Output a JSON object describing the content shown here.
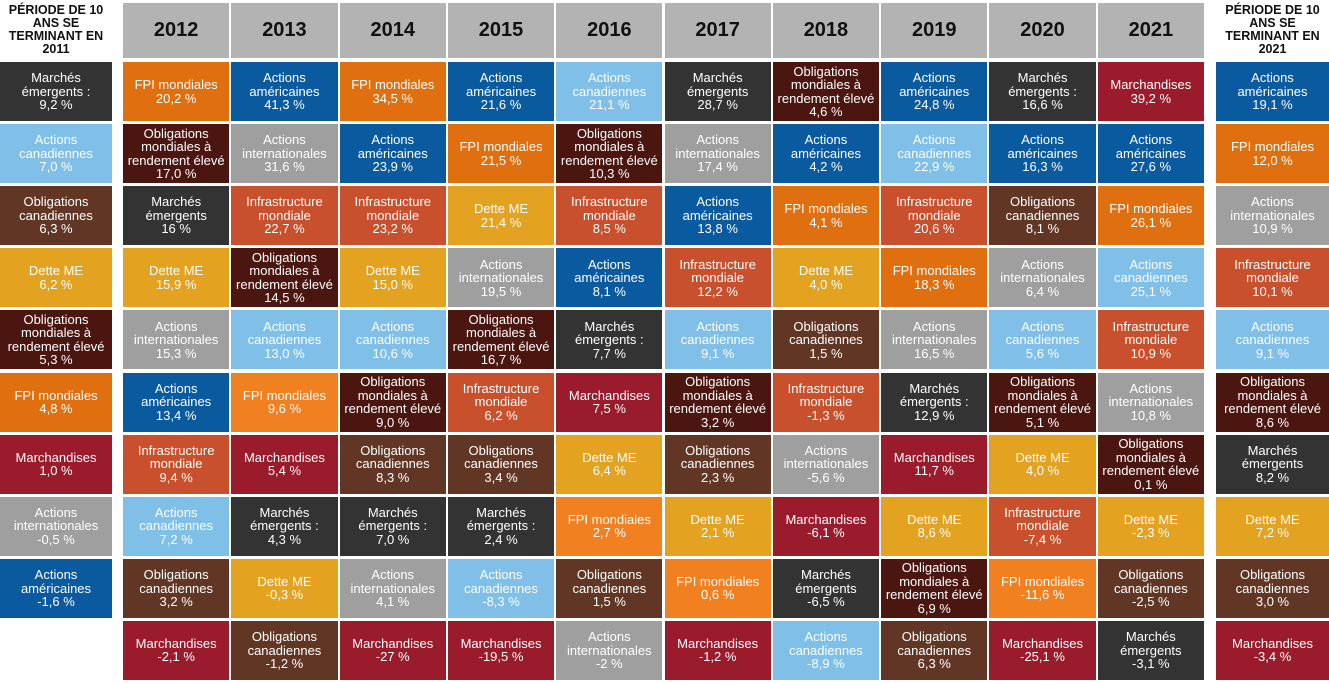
{
  "columns": [
    {
      "header": "PÉRIODE DE 10 ANS SE TERMINANT EN 2011",
      "cells": [
        {
          "asset": "Marchés émergents :",
          "value": "9,2 %",
          "color": "#333333"
        },
        {
          "asset": "Actions canadiennes",
          "value": "7,0 %",
          "color": "#7fbfe8"
        },
        {
          "asset": "Obligations canadiennes",
          "value": "6,3 %",
          "color": "#613624"
        },
        {
          "asset": "Dette ME",
          "value": "6,2 %",
          "color": "#e3a21f"
        },
        {
          "asset": "Obligations mondiales à rendement élevé",
          "value": "5,3 %",
          "color": "#4b1610"
        },
        {
          "asset": "FPI mondiales",
          "value": "4,8 %",
          "color": "#e0700f"
        },
        {
          "asset": "Marchandises",
          "value": "1,0 %",
          "color": "#9a1b2c"
        },
        {
          "asset": "Actions internationales",
          "value": "-0,5 %",
          "color": "#9f9f9f"
        },
        {
          "asset": "Actions américaines",
          "value": "-1,6 %",
          "color": "#0a5aa0"
        }
      ]
    },
    {
      "header": "2012",
      "cells": [
        {
          "asset": "FPI mondiales",
          "value": "20,2 %",
          "color": "#e0700f"
        },
        {
          "asset": "Obligations mondiales à rendement élevé",
          "value": "17,0 %",
          "color": "#4b1610"
        },
        {
          "asset": "Marchés émergents",
          "value": "16 %",
          "color": "#333333"
        },
        {
          "asset": "Dette ME",
          "value": "15,9 %",
          "color": "#e3a21f"
        },
        {
          "asset": "Actions internationales",
          "value": "15,3 %",
          "color": "#9f9f9f"
        },
        {
          "asset": "Actions américaines",
          "value": "13,4 %",
          "color": "#0a5aa0"
        },
        {
          "asset": "Infrastructure mondiale",
          "value": "9,4 %",
          "color": "#c8502c"
        },
        {
          "asset": "Actions canadiennes",
          "value": "7,2 %",
          "color": "#7fbfe8"
        },
        {
          "asset": "Obligations canadiennes",
          "value": "3,2 %",
          "color": "#613624"
        },
        {
          "asset": "Marchandises",
          "value": "-2,1 %",
          "color": "#9a1b2c"
        }
      ]
    },
    {
      "header": "2013",
      "cells": [
        {
          "asset": "Actions américaines",
          "value": "41,3 %",
          "color": "#0a5aa0"
        },
        {
          "asset": "Actions internationales",
          "value": "31,6 %",
          "color": "#9f9f9f"
        },
        {
          "asset": "Infrastructure mondiale",
          "value": "22,7 %",
          "color": "#c8502c"
        },
        {
          "asset": "Obligations mondiales à rendement élevé",
          "value": "14,5 %",
          "color": "#4b1610"
        },
        {
          "asset": "Actions canadiennes",
          "value": "13,0 %",
          "color": "#7fbfe8"
        },
        {
          "asset": "FPI mondiales",
          "value": "9,6 %",
          "color": "#f08020"
        },
        {
          "asset": "Marchandises",
          "value": "5,4 %",
          "color": "#9a1b2c"
        },
        {
          "asset": "Marchés émergents :",
          "value": "4,3 %",
          "color": "#333333"
        },
        {
          "asset": "Dette ME",
          "value": "-0,3 %",
          "color": "#e3a21f"
        },
        {
          "asset": "Obligations canadiennes",
          "value": "-1,2 %",
          "color": "#613624"
        }
      ]
    },
    {
      "header": "2014",
      "cells": [
        {
          "asset": "FPI mondiales",
          "value": "34,5 %",
          "color": "#e0700f"
        },
        {
          "asset": "Actions américaines",
          "value": "23,9 %",
          "color": "#0a5aa0"
        },
        {
          "asset": "Infrastructure mondiale",
          "value": "23,2 %",
          "color": "#c8502c"
        },
        {
          "asset": "Dette ME",
          "value": "15,0 %",
          "color": "#e3a21f"
        },
        {
          "asset": "Actions canadiennes",
          "value": "10,6 %",
          "color": "#7fbfe8"
        },
        {
          "asset": "Obligations mondiales à rendement élevé",
          "value": "9,0 %",
          "color": "#4b1610"
        },
        {
          "asset": "Obligations canadiennes",
          "value": "8,3 %",
          "color": "#613624"
        },
        {
          "asset": "Marchés émergents :",
          "value": "7,0 %",
          "color": "#333333"
        },
        {
          "asset": "Actions internationales",
          "value": "4,1 %",
          "color": "#9f9f9f"
        },
        {
          "asset": "Marchandises",
          "value": "-27 %",
          "color": "#9a1b2c"
        }
      ]
    },
    {
      "header": "2015",
      "cells": [
        {
          "asset": "Actions américaines",
          "value": "21,6 %",
          "color": "#0a5aa0"
        },
        {
          "asset": "FPI mondiales",
          "value": "21,5 %",
          "color": "#e0700f"
        },
        {
          "asset": "Dette ME",
          "value": "21,4 %",
          "color": "#e3a21f"
        },
        {
          "asset": "Actions internationales",
          "value": "19,5 %",
          "color": "#9f9f9f"
        },
        {
          "asset": "Obligations mondiales à rendement élevé",
          "value": "16,7 %",
          "color": "#4b1610"
        },
        {
          "asset": "Infrastructure mondiale",
          "value": "6,2 %",
          "color": "#c8502c"
        },
        {
          "asset": "Obligations canadiennes",
          "value": "3,4 %",
          "color": "#613624"
        },
        {
          "asset": "Marchés émergents :",
          "value": "2,4 %",
          "color": "#333333"
        },
        {
          "asset": "Actions canadiennes",
          "value": "-8,3 %",
          "color": "#7fbfe8"
        },
        {
          "asset": "Marchandises",
          "value": "-19,5 %",
          "color": "#9a1b2c"
        }
      ]
    },
    {
      "header": "2016",
      "cells": [
        {
          "asset": "Actions canadiennes",
          "value": "21,1 %",
          "color": "#7fbfe8"
        },
        {
          "asset": "Obligations mondiales à rendement élevé",
          "value": "10,3 %",
          "color": "#4b1610"
        },
        {
          "asset": "Infrastructure mondiale",
          "value": "8,5 %",
          "color": "#c8502c"
        },
        {
          "asset": "Actions américaines",
          "value": "8,1 %",
          "color": "#0a5aa0"
        },
        {
          "asset": "Marchés émergents :",
          "value": "7,7 %",
          "color": "#333333"
        },
        {
          "asset": "Marchandises",
          "value": "7,5 %",
          "color": "#9a1b2c"
        },
        {
          "asset": "Dette ME",
          "value": "6,4 %",
          "color": "#e3a21f"
        },
        {
          "asset": "FPI mondiales",
          "value": "2,7 %",
          "color": "#f08020"
        },
        {
          "asset": "Obligations canadiennes",
          "value": "1,5 %",
          "color": "#613624"
        },
        {
          "asset": "Actions internationales",
          "value": "-2 %",
          "color": "#9f9f9f"
        }
      ]
    },
    {
      "header": "2017",
      "cells": [
        {
          "asset": "Marchés émergents",
          "value": "28,7 %",
          "color": "#333333"
        },
        {
          "asset": "Actions internationales",
          "value": "17,4 %",
          "color": "#9f9f9f"
        },
        {
          "asset": "Actions américaines",
          "value": "13,8 %",
          "color": "#0a5aa0"
        },
        {
          "asset": "Infrastructure mondiale",
          "value": "12,2 %",
          "color": "#c8502c"
        },
        {
          "asset": "Actions canadiennes",
          "value": "9,1 %",
          "color": "#7fbfe8"
        },
        {
          "asset": "Obligations mondiales à rendement élevé",
          "value": "3,2 %",
          "color": "#4b1610"
        },
        {
          "asset": "Obligations canadiennes",
          "value": "2,3 %",
          "color": "#613624"
        },
        {
          "asset": "Dette ME",
          "value": "2,1 %",
          "color": "#e3a21f"
        },
        {
          "asset": "FPI mondiales",
          "value": "0,6 %",
          "color": "#f08020"
        },
        {
          "asset": "Marchandises",
          "value": "-1,2 %",
          "color": "#9a1b2c"
        }
      ]
    },
    {
      "header": "2018",
      "cells": [
        {
          "asset": "Obligations mondiales à rendement élevé",
          "value": "4,6 %",
          "color": "#4b1610"
        },
        {
          "asset": "Actions américaines",
          "value": "4,2 %",
          "color": "#0a5aa0"
        },
        {
          "asset": "FPI mondiales",
          "value": "4,1 %",
          "color": "#e0700f"
        },
        {
          "asset": "Dette ME",
          "value": "4,0 %",
          "color": "#e3a21f"
        },
        {
          "asset": "Obligations canadiennes",
          "value": "1,5 %",
          "color": "#613624"
        },
        {
          "asset": "Infrastructure mondiale",
          "value": "-1,3 %",
          "color": "#c8502c"
        },
        {
          "asset": "Actions internationales",
          "value": "-5,6 %",
          "color": "#9f9f9f"
        },
        {
          "asset": "Marchandises",
          "value": "-6,1 %",
          "color": "#9a1b2c"
        },
        {
          "asset": "Marchés émergents",
          "value": "-6,5 %",
          "color": "#333333"
        },
        {
          "asset": "Actions canadiennes",
          "value": "-8,9 %",
          "color": "#7fbfe8"
        }
      ]
    },
    {
      "header": "2019",
      "cells": [
        {
          "asset": "Actions américaines",
          "value": "24,8 %",
          "color": "#0a5aa0"
        },
        {
          "asset": "Actions canadiennes",
          "value": "22,9 %",
          "color": "#7fbfe8"
        },
        {
          "asset": "Infrastructure mondiale",
          "value": "20,6 %",
          "color": "#c8502c"
        },
        {
          "asset": "FPI mondiales",
          "value": "18,3 %",
          "color": "#e0700f"
        },
        {
          "asset": "Actions internationales",
          "value": "16,5 %",
          "color": "#9f9f9f"
        },
        {
          "asset": "Marchés émergents :",
          "value": "12,9 %",
          "color": "#333333"
        },
        {
          "asset": "Marchandises",
          "value": "11,7 %",
          "color": "#9a1b2c"
        },
        {
          "asset": "Dette ME",
          "value": "8,6 %",
          "color": "#e3a21f"
        },
        {
          "asset": "Obligations mondiales à rendement élevé",
          "value": "6,9 %",
          "color": "#4b1610"
        },
        {
          "asset": "Obligations canadiennes",
          "value": "6,3 %",
          "color": "#613624"
        }
      ]
    },
    {
      "header": "2020",
      "cells": [
        {
          "asset": "Marchés émergents :",
          "value": "16,6 %",
          "color": "#333333"
        },
        {
          "asset": "Actions américaines",
          "value": "16,3 %",
          "color": "#0a5aa0"
        },
        {
          "asset": "Obligations canadiennes",
          "value": "8,1 %",
          "color": "#613624"
        },
        {
          "asset": "Actions internationales",
          "value": "6,4 %",
          "color": "#9f9f9f"
        },
        {
          "asset": "Actions canadiennes",
          "value": "5,6 %",
          "color": "#7fbfe8"
        },
        {
          "asset": "Obligations mondiales à rendement élevé",
          "value": "5,1 %",
          "color": "#4b1610"
        },
        {
          "asset": "Dette ME",
          "value": "4,0 %",
          "color": "#e3a21f"
        },
        {
          "asset": "Infrastructure mondiale",
          "value": "-7,4 %",
          "color": "#c8502c"
        },
        {
          "asset": "FPI mondiales",
          "value": "-11,6 %",
          "color": "#f08020"
        },
        {
          "asset": "Marchandises",
          "value": "-25,1 %",
          "color": "#9a1b2c"
        }
      ]
    },
    {
      "header": "2021",
      "cells": [
        {
          "asset": "Marchandises",
          "value": "39,2 %",
          "color": "#9a1b2c"
        },
        {
          "asset": "Actions américaines",
          "value": "27,6 %",
          "color": "#0a5aa0"
        },
        {
          "asset": "FPI mondiales",
          "value": "26,1 %",
          "color": "#e0700f"
        },
        {
          "asset": "Actions canadiennes",
          "value": "25,1 %",
          "color": "#7fbfe8"
        },
        {
          "asset": "Infrastructure mondiale",
          "value": "10,9 %",
          "color": "#c8502c"
        },
        {
          "asset": "Actions internationales",
          "value": "10,8 %",
          "color": "#9f9f9f"
        },
        {
          "asset": "Obligations mondiales à rendement élevé",
          "value": "0,1 %",
          "color": "#4b1610"
        },
        {
          "asset": "Dette ME",
          "value": "-2,3 %",
          "color": "#e3a21f"
        },
        {
          "asset": "Obligations canadiennes",
          "value": "-2,5 %",
          "color": "#613624"
        },
        {
          "asset": "Marchés émergents",
          "value": "-3,1 %",
          "color": "#333333"
        }
      ]
    },
    {
      "header": "PÉRIODE DE 10 ANS SE TERMINANT EN 2021",
      "cells": [
        {
          "asset": "Actions américaines",
          "value": "19,1 %",
          "color": "#0a5aa0"
        },
        {
          "asset": "FPI mondiales",
          "value": "12,0 %",
          "color": "#e0700f"
        },
        {
          "asset": "Actions internationales",
          "value": "10,9 %",
          "color": "#9f9f9f"
        },
        {
          "asset": "Infrastructure mondiale",
          "value": "10,1 %",
          "color": "#c8502c"
        },
        {
          "asset": "Actions canadiennes",
          "value": "9,1 %",
          "color": "#7fbfe8"
        },
        {
          "asset": "Obligations mondiales à rendement élevé",
          "value": "8,6 %",
          "color": "#4b1610"
        },
        {
          "asset": "Marchés émergents",
          "value": "8,2 %",
          "color": "#333333"
        },
        {
          "asset": "Dette ME",
          "value": "7,2 %",
          "color": "#e3a21f"
        },
        {
          "asset": "Obligations canadiennes",
          "value": "3,0 %",
          "color": "#613624"
        },
        {
          "asset": "Marchandises",
          "value": "-3,4 %",
          "color": "#9a1b2c"
        }
      ]
    }
  ]
}
